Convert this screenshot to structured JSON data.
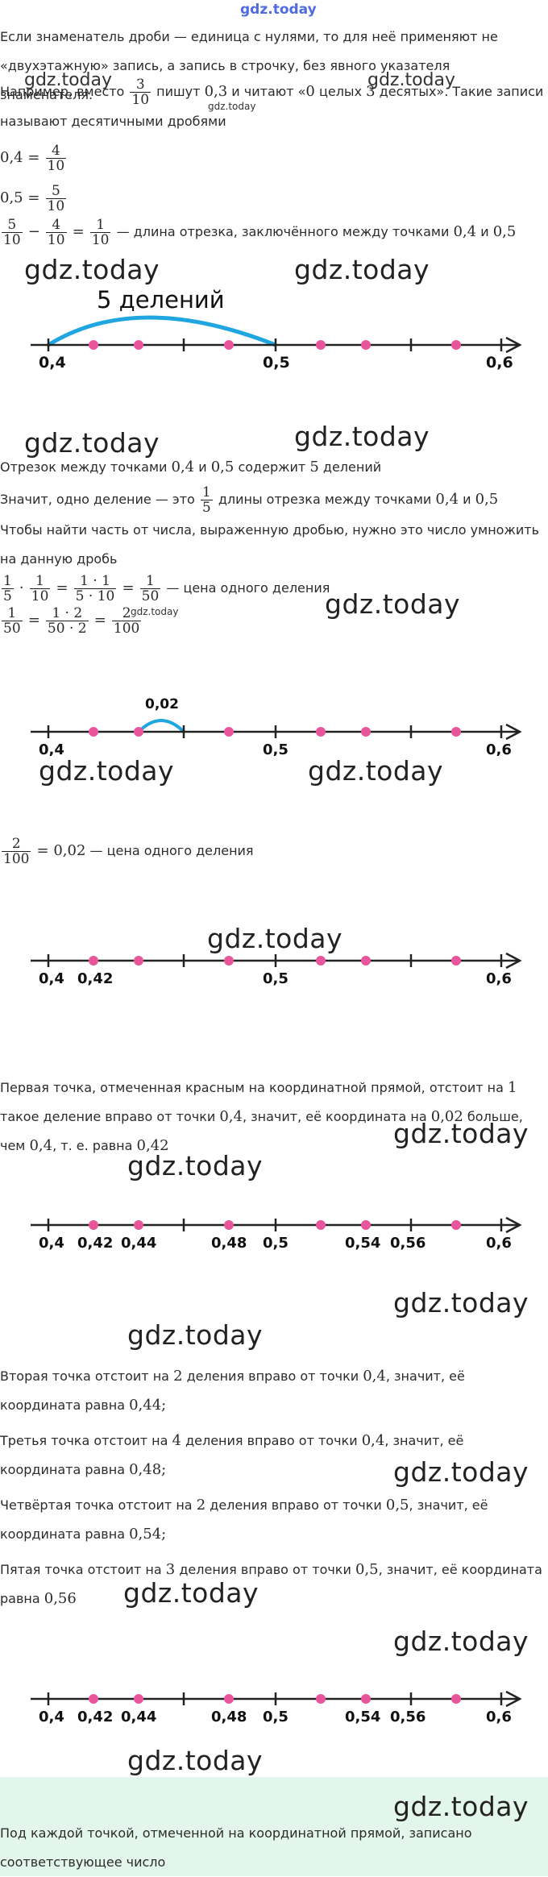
{
  "header": {
    "logo": "gdz.today"
  },
  "watermark": "gdz.today",
  "colors": {
    "pink": "#e8559b",
    "blue": "#1fa6e0",
    "green_bg": "#e3f6ec"
  },
  "p1": "Если знаменатель дроби — единица с нулями, то для неё применяют не «двухэтажную» запись, а запись в строчку, без явного указателя знаменателя.",
  "p2": {
    "a": "Например, вместо",
    "frac_n": "3",
    "frac_d": "10",
    "b": "пишут",
    "m1": "0,3",
    "c": "и читают «",
    "m2": "0",
    "d": "целых",
    "m3": "3",
    "e": "десятых». Такие записи называют десятичными дробями"
  },
  "eq1": {
    "lhs": "0,4 =",
    "n": "4",
    "d": "10"
  },
  "eq2": {
    "lhs": "0,5 =",
    "n": "5",
    "d": "10"
  },
  "eq3": {
    "n1": "5",
    "d1": "10",
    "minus": "−",
    "n2": "4",
    "d2": "10",
    "eqs": "=",
    "n3": "1",
    "d3": "10",
    "text": "— длина отрезка, заключённого между точками",
    "a": "0,4",
    "and": "и",
    "b": "0,5"
  },
  "line1": {
    "arc_label": "5 делений",
    "labels": [
      "0,4",
      "0,5",
      "0,6"
    ]
  },
  "p3": {
    "a": "Отрезок между точками",
    "m1": "0,4",
    "and": "и",
    "m2": "0,5",
    "b": "содержит",
    "m3": "5",
    "c": "делений"
  },
  "p4": {
    "a": "Значит, одно деление — это",
    "n": "1",
    "d": "5",
    "b": "длины отрезка между точками",
    "m1": "0,4",
    "and": "и",
    "m2": "0,5"
  },
  "p5": "Чтобы найти часть от числа, выраженную дробью, нужно это число умножить на данную дробь",
  "eq4": {
    "n1": "1",
    "d1": "5",
    "dot": "·",
    "n2": "1",
    "d2": "10",
    "eq": "=",
    "n3": "1 · 1",
    "d3": "5 · 10",
    "n4": "1",
    "d4": "50",
    "text": "— цена одного деления"
  },
  "eq5": {
    "n1": "1",
    "d1": "50",
    "eq": "=",
    "n2": "1 · 2",
    "d2": "50 · 2",
    "n3": "2",
    "d3": "100"
  },
  "line2": {
    "arc_label": "0,02",
    "labels": [
      "0,4",
      "0,5",
      "0,6"
    ]
  },
  "eq6": {
    "n": "2",
    "d": "100",
    "rest": "= 0,02",
    "text": "— цена одного деления"
  },
  "line3": {
    "labels": [
      "0,4",
      "0,42",
      "0,5",
      "0,6"
    ]
  },
  "p6": {
    "a": "Первая точка, отмеченная красным на координатной прямой, отстоит на",
    "m1": "1",
    "b": "такое деление вправо от точки",
    "m2": "0,4",
    "c": ", значит, её координата на",
    "m3": "0,02",
    "d": "больше, чем",
    "m4": "0,4",
    "e": ", т. е. равна",
    "m5": "0,42"
  },
  "line4": {
    "labels": [
      "0,4",
      "0,42",
      "0,44",
      "0,48",
      "0,5",
      "0,54",
      "0,56",
      "0,6"
    ]
  },
  "p7": {
    "a": "Вторая точка отстоит на",
    "m1": "2",
    "b": "деления вправо от точки",
    "m2": "0,4",
    "c": ", значит, её координата равна",
    "m3": "0,44;"
  },
  "p8": {
    "a": "Третья точка отстоит на",
    "m1": "4",
    "b": "деления вправо от точки",
    "m2": "0,4",
    "c": ", значит, её координата равна",
    "m3": "0,48;"
  },
  "p9": {
    "a": "Четвёртая точка отстоит на",
    "m1": "2",
    "b": "деления вправо от точки",
    "m2": "0,5",
    "c": ", значит, её координата равна",
    "m3": "0,54;"
  },
  "p10": {
    "a": "Пятая точка отстоит на",
    "m1": "3",
    "b": "деления вправо от точки",
    "m2": "0,5",
    "c": ", значит, её координата равна",
    "m3": "0,56"
  },
  "line5": {
    "labels": [
      "0,4",
      "0,42",
      "0,44",
      "0,48",
      "0,5",
      "0,54",
      "0,56",
      "0,6"
    ]
  },
  "p11": "Под каждой точкой, отмеченной на координатной прямой, записано соответствующее число"
}
